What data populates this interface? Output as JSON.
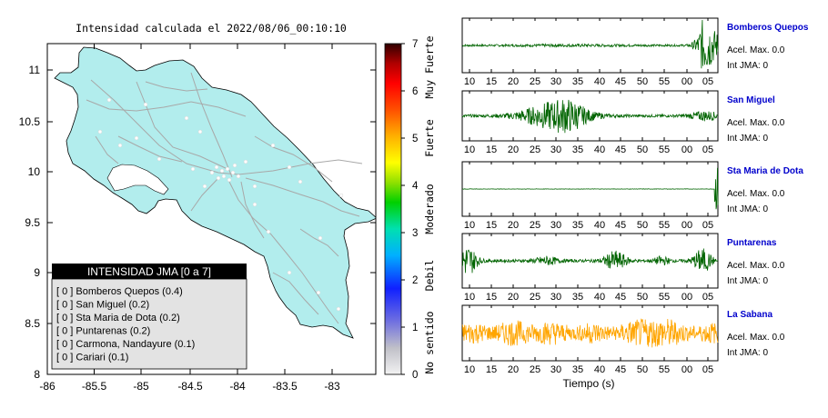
{
  "map": {
    "title": "Intensidad calculada el 2022/08/06_00:10:10",
    "xticks": [
      "-86",
      "-85.5",
      "-85",
      "-84.5",
      "-84",
      "-83.5",
      "-83"
    ],
    "yticks": [
      "11",
      "10.5",
      "10",
      "9.5",
      "9",
      "8.5",
      "8"
    ],
    "land_color": "#b2eded",
    "road_color": "#a8a8a8",
    "legend": {
      "title": "INTENSIDAD JMA [0 a 7]",
      "items": [
        "[ 0 ]  Bomberos Quepos (0.4)",
        "[ 0 ]  San Miguel (0.2)",
        "[ 0 ]  Sta Maria de Dota (0.2)",
        "[ 0 ]  Puntarenas (0.2)",
        "[ 0 ]  Carmona, Nandayure (0.1)",
        "[ 0 ]  Cariari (0.1)"
      ]
    }
  },
  "colorbar": {
    "ticks": [
      "7",
      "6",
      "5",
      "4",
      "3",
      "2",
      "1",
      "0"
    ],
    "labels": [
      "Muy Fuerte",
      "Fuerte",
      "Moderado",
      "Debil",
      "No sentido"
    ]
  },
  "chart_data": {
    "type": "line",
    "xlabel": "Tiempo (s)",
    "x_tick_labels": [
      "10",
      "15",
      "20",
      "25",
      "30",
      "35",
      "40",
      "45",
      "50",
      "55",
      "00",
      "05"
    ],
    "series": [
      {
        "name": "Bomberos Quepos",
        "accel_label": "Acel. Max. 0.0",
        "int_label": "Int JMA: 0",
        "color": "#006400"
      },
      {
        "name": "San Miguel",
        "accel_label": "Acel. Max. 0.0",
        "int_label": "Int JMA: 0",
        "color": "#006400"
      },
      {
        "name": "Sta Maria de Dota",
        "accel_label": "Acel. Max. 0.0",
        "int_label": "Int JMA: 0",
        "color": "#006400"
      },
      {
        "name": "Puntarenas",
        "accel_label": "Acel. Max. 0.0",
        "int_label": "Int JMA: 0",
        "color": "#006400"
      },
      {
        "name": "La Sabana",
        "accel_label": "Acel. Max. 0.0",
        "int_label": "Int JMA: 0",
        "color": "#ffa500"
      }
    ]
  }
}
